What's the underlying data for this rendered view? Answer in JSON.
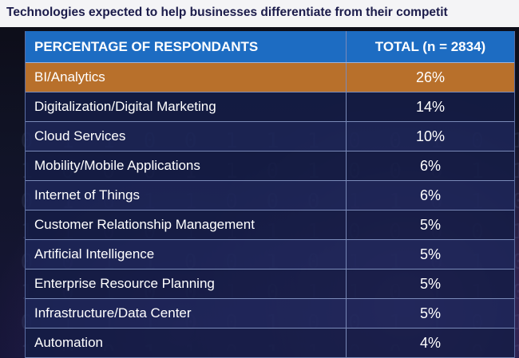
{
  "title": "Technologies expected to help businesses differentiate from their competit",
  "chart_data": {
    "type": "table",
    "title": "Technologies expected to help businesses differentiate from their competit",
    "columns": [
      "PERCENTAGE OF RESPONDANTS",
      "TOTAL (n = 2834)"
    ],
    "rows": [
      {
        "label": "BI/Analytics",
        "value_text": "26%",
        "value": 26
      },
      {
        "label": "Digitalization/Digital Marketing",
        "value_text": "14%",
        "value": 14
      },
      {
        "label": "Cloud Services",
        "value_text": "10%",
        "value": 10
      },
      {
        "label": "Mobility/Mobile Applications",
        "value_text": "6%",
        "value": 6
      },
      {
        "label": "Internet of Things",
        "value_text": "6%",
        "value": 6
      },
      {
        "label": "Customer Relationship Management",
        "value_text": "5%",
        "value": 5
      },
      {
        "label": "Artificial Intelligence",
        "value_text": "5%",
        "value": 5
      },
      {
        "label": "Enterprise Resource Planning",
        "value_text": "5%",
        "value": 5
      },
      {
        "label": "Infrastructure/Data Center",
        "value_text": "5%",
        "value": 5
      },
      {
        "label": "Automation",
        "value_text": "4%",
        "value": 4
      }
    ],
    "highlighted_row": "BI/Analytics"
  },
  "colors": {
    "header_bg": "#1d6cc2",
    "highlight_bg": "#b8702b",
    "row_bg": "#141c46",
    "title_text": "#1b1b4a"
  }
}
